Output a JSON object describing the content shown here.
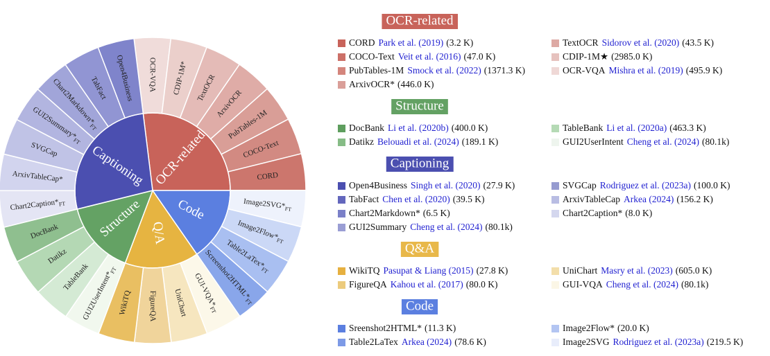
{
  "wheel": {
    "groups": [
      {
        "label": "OCR-related",
        "color": "#c8635a",
        "segments": [
          {
            "label": "OCR-VQA",
            "color": "#f0dcda"
          },
          {
            "label": "CDIP-1M*",
            "color": "#ebcfcb"
          },
          {
            "label": "TextOCR",
            "color": "#e4bbb7"
          },
          {
            "label": "ArxivOCR",
            "color": "#dfaca7"
          },
          {
            "label": "PubTables-1M",
            "color": "#d99e97"
          },
          {
            "label": "COCO-Text",
            "color": "#d28a82"
          },
          {
            "label": "CORD",
            "color": "#cc766d"
          }
        ]
      },
      {
        "label": "Code",
        "color": "#5b7fe0",
        "segments": [
          {
            "label": "Image2SVG*",
            "sub": "FT",
            "color": "#eef2fc"
          },
          {
            "label": "Image2Flow*",
            "sub": "FT",
            "color": "#cbd8f6"
          },
          {
            "label": "Table2LaTex*",
            "sub": "FT",
            "color": "#a9bff1"
          },
          {
            "label": "Screenshot2HTML*",
            "sub": "FT",
            "color": "#89a6ea"
          }
        ]
      },
      {
        "label": "Q/A",
        "color": "#e6b441",
        "segments": [
          {
            "label": "GUI-VQA*",
            "sub": "FT",
            "color": "#fcf8e9"
          },
          {
            "label": "UniChart",
            "color": "#f6e6bf"
          },
          {
            "label": "FigureQA",
            "color": "#f0d49b"
          },
          {
            "label": "WikiTQ",
            "color": "#e9bf62"
          }
        ]
      },
      {
        "label": "Structure",
        "color": "#64a264",
        "segments": [
          {
            "label": "GUI2UserIntent*",
            "sub": "FT",
            "color": "#f1f8ee"
          },
          {
            "label": "TableBank",
            "color": "#d4ead4"
          },
          {
            "label": "Datikz",
            "color": "#b4d8b4"
          },
          {
            "label": "DocBank",
            "color": "#8fbf8f",
            "light": true
          }
        ]
      },
      {
        "label": "Captioning",
        "color": "#4b4fb0",
        "segments": [
          {
            "label": "Chart2Caption*",
            "sub": "FT",
            "color": "#e4e5f4"
          },
          {
            "label": "ArxivTableCap*",
            "color": "#d2d4ee"
          },
          {
            "label": "SVGCap",
            "color": "#c0c3e6"
          },
          {
            "label": "GUI2Summary*",
            "sub": "FT",
            "color": "#b2b5e0"
          },
          {
            "label": "Chart2Markdown*",
            "sub": "FT",
            "color": "#a1a5d9"
          },
          {
            "label": "TabFact",
            "color": "#9195d3"
          },
          {
            "label": "Open4Business",
            "color": "#7f84cb",
            "light": true
          }
        ]
      }
    ]
  },
  "legend": {
    "sections": [
      {
        "title": "OCR-related",
        "color": "#c8635a",
        "items": [
          {
            "name": "CORD",
            "cite": "Park et al. (2019)",
            "count": "(3.2 K)",
            "color": "#c8635a"
          },
          {
            "name": "COCO-Text",
            "cite": "Veit et al. (2016)",
            "count": "(47.0 K)",
            "color": "#cc7068"
          },
          {
            "name": "PubTables-1M",
            "cite": "Smock et al. (2022)",
            "count": "(1371.3 K)",
            "color": "#d4857c"
          },
          {
            "name": "ArxivOCR*",
            "count": "(446.0 K)",
            "color": "#da9f99"
          },
          {
            "name": "TextOCR",
            "cite": "Sidorov et al. (2020)",
            "count": "(43.5 K)",
            "color": "#dda9a4"
          },
          {
            "name": "CDIP-1M★",
            "count": "(2985.0 K)",
            "color": "#e6c2be"
          },
          {
            "name": "OCR-VQA",
            "cite": "Mishra et al. (2019)",
            "count": "(495.9 K)",
            "color": "#efd8d6"
          }
        ]
      },
      {
        "title": "Structure",
        "color": "#63a163",
        "items": [
          {
            "name": "DocBank",
            "cite": "Li et al. (2020b)",
            "count": "(400.0 K)",
            "color": "#5e9e5e"
          },
          {
            "name": "Datikz",
            "cite": "Belouadi et al. (2024)",
            "count": "(189.1 K)",
            "color": "#86bc86"
          },
          {
            "name": "TableBank",
            "cite": "Li et al. (2020a)",
            "count": "(463.3 K)",
            "color": "#b5dab5"
          },
          {
            "name": "GUI2UserIntent",
            "cite": "Cheng et al. (2024)",
            "count": "(80.1k)",
            "color": "#eef5ee"
          }
        ]
      },
      {
        "title": "Captioning",
        "color": "#4b4fb0",
        "items": [
          {
            "name": "Open4Business",
            "cite": "Singh et al. (2020)",
            "count": "(27.9 K)",
            "color": "#4b4fb0"
          },
          {
            "name": "TabFact",
            "cite": "Chen et al. (2020)",
            "count": "(39.5 K)",
            "color": "#6367bd"
          },
          {
            "name": "Chart2Markdown*",
            "count": "(6.5 K)",
            "color": "#7b80c8"
          },
          {
            "name": "GUI2Summary",
            "cite": "Cheng et al. (2024)",
            "count": "(80.1k)",
            "color": "#9a9ed4"
          },
          {
            "name": "SVGCap",
            "cite": "Rodriguez et al. (2023a)",
            "count": "(100.0 K)",
            "color": "#969bd0"
          },
          {
            "name": "ArxivTableCap",
            "cite": "Arkea (2024)",
            "count": "(156.2 K)",
            "color": "#b9bde3"
          },
          {
            "name": "Chart2Caption*",
            "count": "(8.0 K)",
            "color": "#d4d7ee"
          }
        ]
      },
      {
        "title": "Q&A",
        "color": "#e8b84a",
        "items": [
          {
            "name": "WikiTQ",
            "cite": "Pasupat & Liang (2015)",
            "count": "(27.8 K)",
            "color": "#e6b040"
          },
          {
            "name": "FigureQA",
            "cite": "Kahou et al. (2017)",
            "count": "(80.0 K)",
            "color": "#eccb7d"
          },
          {
            "name": "UniChart",
            "cite": "Masry et al. (2023)",
            "count": "(605.0 K)",
            "color": "#f3deaa"
          },
          {
            "name": "GUI-VQA",
            "cite": "Cheng et al. (2024)",
            "count": "(80.1k)",
            "color": "#fbf6e6"
          }
        ]
      },
      {
        "title": "Code",
        "color": "#5b7fe0",
        "items": [
          {
            "name": "Sreenshot2HTML*",
            "count": "(11.3 K)",
            "color": "#5b7fe0"
          },
          {
            "name": "Table2LaTex",
            "cite": "Arkea (2024)",
            "count": "(78.6 K)",
            "color": "#7d9ae6"
          },
          {
            "name": "Image2Flow*",
            "count": "(20.0 K)",
            "color": "#b3c5f2"
          },
          {
            "name": "Image2SVG",
            "cite": "Rodriguez et al. (2023a)",
            "count": "(219.5 K)",
            "color": "#e8edfb"
          }
        ]
      }
    ]
  }
}
